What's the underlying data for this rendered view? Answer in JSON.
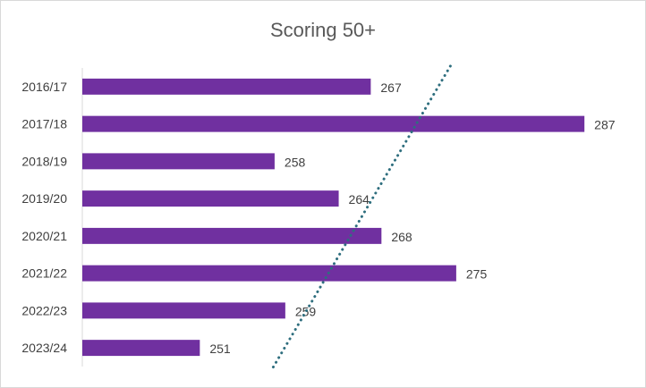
{
  "chart_data": {
    "type": "bar",
    "orientation": "horizontal",
    "title": "Scoring 50+",
    "categories": [
      "2016/17",
      "2017/18",
      "2018/19",
      "2019/20",
      "2020/21",
      "2021/22",
      "2022/23",
      "2023/24"
    ],
    "values": [
      267,
      287,
      258,
      264,
      268,
      275,
      259,
      251
    ],
    "xlim": [
      240,
      290
    ],
    "xlabel": "",
    "ylabel": "",
    "grid": false,
    "legend": "none",
    "data_labels": true,
    "trendline": {
      "type": "linear",
      "style": "dotted",
      "color": "#2e6e7e"
    },
    "colors": {
      "bar": "#7030a0",
      "trendline": "#2e6e7e",
      "title": "#595959",
      "text": "#404040",
      "axis": "#d9d9d9"
    }
  }
}
